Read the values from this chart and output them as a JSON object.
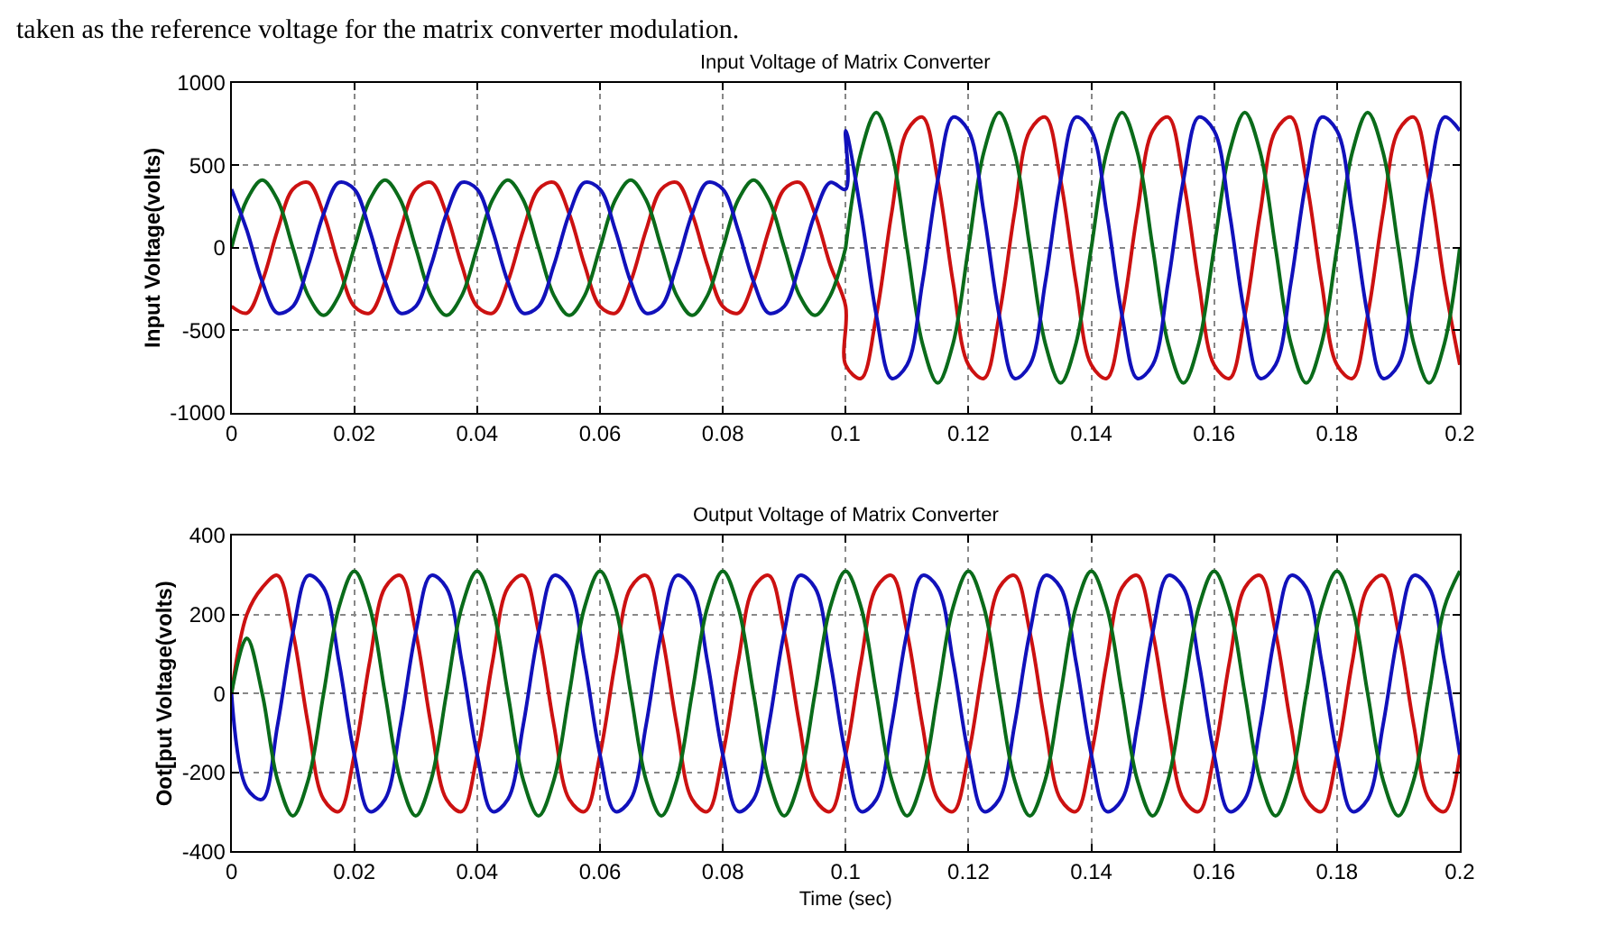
{
  "chart_data": [
    {
      "type": "line",
      "title": "Input Voltage of Matrix Converter",
      "ylabel": "Input Voltage(volts)",
      "annotations": [
        "taken as the reference voltage for the matrix converter modulation."
      ],
      "x": [
        0,
        0.0025,
        0.005,
        0.0075,
        0.01,
        0.0125,
        0.015,
        0.0175,
        0.02,
        0.0225,
        0.025,
        0.0275,
        0.03,
        0.0325,
        0.035,
        0.0375,
        0.04,
        0.0425,
        0.045,
        0.0475,
        0.05,
        0.0525,
        0.055,
        0.0575,
        0.06,
        0.0625,
        0.065,
        0.0675,
        0.07,
        0.0725,
        0.075,
        0.0775,
        0.08,
        0.0825,
        0.085,
        0.0875,
        0.09,
        0.0925,
        0.095,
        0.0975,
        0.1,
        0.1,
        0.1025,
        0.105,
        0.1075,
        0.11,
        0.1125,
        0.115,
        0.1175,
        0.12,
        0.1225,
        0.125,
        0.1275,
        0.13,
        0.1325,
        0.135,
        0.1375,
        0.14,
        0.1425,
        0.145,
        0.1475,
        0.15,
        0.1525,
        0.155,
        0.1575,
        0.16,
        0.1625,
        0.165,
        0.1675,
        0.17,
        0.1725,
        0.175,
        0.1775,
        0.18,
        0.1825,
        0.185,
        0.1875,
        0.19,
        0.1925,
        0.195,
        0.1975,
        0.2
      ],
      "series": [
        {
          "color": "#cc1111",
          "values": [
            -355,
            -396,
            -205,
            106,
            355,
            396,
            205,
            -106,
            -355,
            -396,
            -205,
            106,
            355,
            396,
            205,
            -106,
            -355,
            -396,
            -205,
            106,
            355,
            396,
            205,
            -106,
            -355,
            -396,
            -205,
            106,
            355,
            396,
            205,
            -106,
            -355,
            -396,
            -205,
            106,
            355,
            396,
            205,
            -106,
            -355,
            -710,
            -792,
            -410,
            212,
            710,
            792,
            410,
            -212,
            -710,
            -792,
            -410,
            212,
            710,
            792,
            410,
            -212,
            -710,
            -792,
            -410,
            212,
            710,
            792,
            410,
            -212,
            -710,
            -792,
            -410,
            212,
            710,
            792,
            410,
            -212,
            -710,
            -792,
            -410,
            212,
            710,
            792,
            410,
            -212,
            -710
          ]
        },
        {
          "color": "#0a6b1a",
          "values": [
            0,
            290,
            410,
            290,
            0,
            -290,
            -410,
            -290,
            0,
            290,
            410,
            290,
            0,
            -290,
            -410,
            -290,
            0,
            290,
            410,
            290,
            0,
            -290,
            -410,
            -290,
            0,
            290,
            410,
            290,
            0,
            -290,
            -410,
            -290,
            0,
            290,
            410,
            290,
            0,
            -290,
            -410,
            -290,
            0,
            0,
            580,
            820,
            580,
            0,
            -580,
            -820,
            -580,
            0,
            580,
            820,
            580,
            0,
            -580,
            -820,
            -580,
            0,
            580,
            820,
            580,
            0,
            -580,
            -820,
            -580,
            0,
            580,
            820,
            580,
            0,
            -580,
            -820,
            -580,
            0,
            580,
            820,
            580,
            0,
            -580,
            -820,
            -580,
            0
          ]
        },
        {
          "color": "#1111bb",
          "values": [
            355,
            106,
            -205,
            -396,
            -355,
            -106,
            205,
            396,
            355,
            106,
            -205,
            -396,
            -355,
            -106,
            205,
            396,
            355,
            106,
            -205,
            -396,
            -355,
            -106,
            205,
            396,
            355,
            106,
            -205,
            -396,
            -355,
            -106,
            205,
            396,
            355,
            106,
            -205,
            -396,
            -355,
            -106,
            205,
            396,
            355,
            710,
            212,
            -410,
            -792,
            -710,
            -212,
            410,
            792,
            710,
            212,
            -410,
            -792,
            -710,
            -212,
            410,
            792,
            710,
            212,
            -410,
            -792,
            -710,
            -212,
            410,
            792,
            710,
            212,
            -410,
            -792,
            -710,
            -212,
            410,
            792,
            710,
            212,
            -410,
            -792,
            -710,
            -212,
            410,
            792,
            710
          ]
        }
      ],
      "xlim": [
        0,
        0.2
      ],
      "xticks": [
        0,
        0.02,
        0.04,
        0.06,
        0.08,
        0.1,
        0.12,
        0.14,
        0.16,
        0.18,
        0.2
      ],
      "ylim": [
        -1000,
        1000
      ],
      "yticks": [
        -1000,
        -500,
        0,
        500,
        1000
      ],
      "grid": true,
      "line_style": "solid"
    },
    {
      "type": "line",
      "title": "Output Voltage of Matrix Converter",
      "xlabel": "Time (sec)",
      "ylabel": "Oot[put Voltage(volts)",
      "x": [
        0,
        0.0025,
        0.005,
        0.0075,
        0.01,
        0.0125,
        0.015,
        0.0175,
        0.02,
        0.0225,
        0.025,
        0.0275,
        0.03,
        0.0325,
        0.035,
        0.0375,
        0.04,
        0.0425,
        0.045,
        0.0475,
        0.05,
        0.0525,
        0.055,
        0.0575,
        0.06,
        0.0625,
        0.065,
        0.0675,
        0.07,
        0.0725,
        0.075,
        0.0775,
        0.08,
        0.0825,
        0.085,
        0.0875,
        0.09,
        0.0925,
        0.095,
        0.0975,
        0.1,
        0.1025,
        0.105,
        0.1075,
        0.11,
        0.1125,
        0.115,
        0.1175,
        0.12,
        0.1225,
        0.125,
        0.1275,
        0.13,
        0.1325,
        0.135,
        0.1375,
        0.14,
        0.1425,
        0.145,
        0.1475,
        0.15,
        0.1525,
        0.155,
        0.1575,
        0.16,
        0.1625,
        0.165,
        0.1675,
        0.17,
        0.1725,
        0.175,
        0.1775,
        0.18,
        0.1825,
        0.185,
        0.1875,
        0.19,
        0.1925,
        0.195,
        0.1975,
        0.2
      ],
      "series": [
        {
          "color": "#cc1111",
          "values": [
            0,
            200,
            268,
            299,
            155,
            -80,
            -268,
            -299,
            -155,
            80,
            268,
            299,
            155,
            -80,
            -268,
            -299,
            -155,
            80,
            268,
            299,
            155,
            -80,
            -268,
            -299,
            -155,
            80,
            268,
            299,
            155,
            -80,
            -268,
            -299,
            -155,
            80,
            268,
            299,
            155,
            -80,
            -268,
            -299,
            -155,
            80,
            268,
            299,
            155,
            -80,
            -268,
            -299,
            -155,
            80,
            268,
            299,
            155,
            -80,
            -268,
            -299,
            -155,
            80,
            268,
            299,
            155,
            -80,
            -268,
            -299,
            -155,
            80,
            268,
            299,
            155,
            -80,
            -268,
            -299,
            -155,
            80,
            268,
            299,
            155,
            -80,
            -268,
            -299,
            -155
          ]
        },
        {
          "color": "#1111bb",
          "values": [
            0,
            -240,
            -268,
            -80,
            155,
            299,
            268,
            80,
            -155,
            -299,
            -268,
            -80,
            155,
            299,
            268,
            80,
            -155,
            -299,
            -268,
            -80,
            155,
            299,
            268,
            80,
            -155,
            -299,
            -268,
            -80,
            155,
            299,
            268,
            80,
            -155,
            -299,
            -268,
            -80,
            155,
            299,
            268,
            80,
            -155,
            -299,
            -268,
            -80,
            155,
            299,
            268,
            80,
            -155,
            -299,
            -268,
            -80,
            155,
            299,
            268,
            80,
            -155,
            -299,
            -268,
            -80,
            155,
            299,
            268,
            80,
            -155,
            -299,
            -268,
            -80,
            155,
            299,
            268,
            80,
            -155,
            -299,
            -268,
            -80,
            155,
            299,
            268,
            80,
            -155
          ]
        },
        {
          "color": "#0a6b1a",
          "values": [
            0,
            140,
            0,
            -219,
            -310,
            -219,
            0,
            219,
            310,
            219,
            0,
            -219,
            -310,
            -219,
            0,
            219,
            310,
            219,
            0,
            -219,
            -310,
            -219,
            0,
            219,
            310,
            219,
            0,
            -219,
            -310,
            -219,
            0,
            219,
            310,
            219,
            0,
            -219,
            -310,
            -219,
            0,
            219,
            310,
            219,
            0,
            -219,
            -310,
            -219,
            0,
            219,
            310,
            219,
            0,
            -219,
            -310,
            -219,
            0,
            219,
            310,
            219,
            0,
            -219,
            -310,
            -219,
            0,
            219,
            310,
            219,
            0,
            -219,
            -310,
            -219,
            0,
            219,
            310,
            219,
            0,
            -219,
            -310,
            -219,
            0,
            219,
            310
          ]
        }
      ],
      "xlim": [
        0,
        0.2
      ],
      "xticks": [
        0,
        0.02,
        0.04,
        0.06,
        0.08,
        0.1,
        0.12,
        0.14,
        0.16,
        0.18,
        0.2
      ],
      "ylim": [
        -400,
        400
      ],
      "yticks": [
        -400,
        -200,
        0,
        200,
        400
      ],
      "grid": true,
      "line_style": "solid"
    }
  ]
}
